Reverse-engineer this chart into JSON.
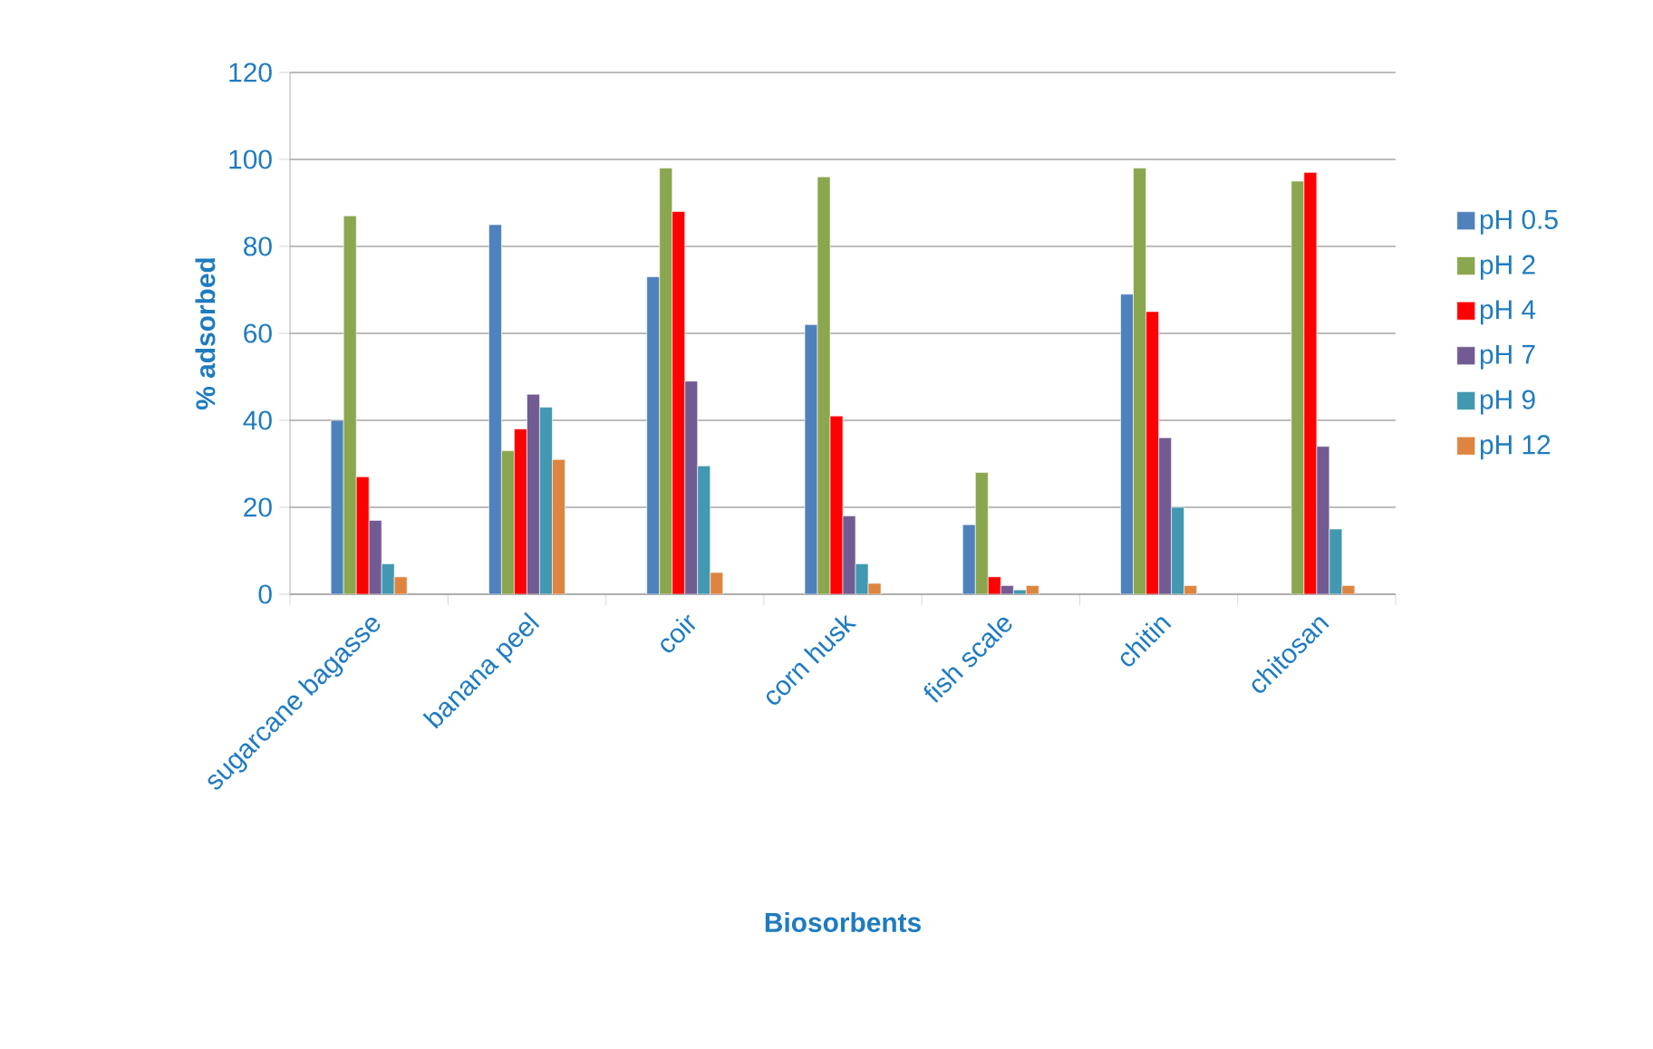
{
  "chart_data": {
    "type": "bar",
    "xlabel": "Biosorbents",
    "ylabel": "% adsorbed",
    "categories": [
      "sugarcane bagasse",
      "banana peel",
      "coir",
      "corn husk",
      "fish scale",
      "chitin",
      "chitosan"
    ],
    "series": [
      {
        "name": "pH 0.5",
        "color": "#4f81bd",
        "values": [
          40,
          85,
          73,
          62,
          16,
          69,
          null
        ]
      },
      {
        "name": "pH 2",
        "color": "#8aa64e",
        "values": [
          87,
          33,
          98,
          96,
          28,
          98,
          95
        ]
      },
      {
        "name": "pH 4",
        "color": "#ff0000",
        "values": [
          27,
          38,
          88,
          41,
          4,
          65,
          97
        ]
      },
      {
        "name": "pH 7",
        "color": "#725b92",
        "values": [
          17,
          46,
          49,
          18,
          2,
          36,
          34
        ]
      },
      {
        "name": "pH 9",
        "color": "#4198b0",
        "values": [
          7,
          43,
          29.5,
          7,
          1,
          20,
          15
        ]
      },
      {
        "name": "pH 12",
        "color": "#dd8540",
        "values": [
          4,
          31,
          5,
          2.5,
          2,
          2,
          2
        ]
      }
    ],
    "ylim": [
      0,
      120
    ],
    "yticks": [
      0,
      20,
      40,
      60,
      80,
      100,
      120
    ],
    "grid": "y",
    "legend": "right"
  }
}
